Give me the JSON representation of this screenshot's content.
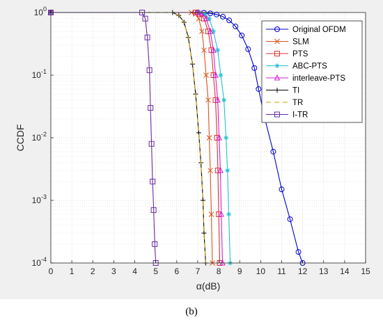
{
  "caption": "(b)",
  "chart_data": {
    "type": "line",
    "title": "",
    "xlabel": "α(dB)",
    "ylabel": "CCDF",
    "xlim": [
      0,
      15
    ],
    "ylim": [
      0.0001,
      1
    ],
    "yscale": "log",
    "grid": true,
    "minor_grid": true,
    "legend_position": "top-right",
    "x_ticks": [
      "0",
      "1",
      "2",
      "3",
      "4",
      "5",
      "6",
      "7",
      "8",
      "9",
      "10",
      "11",
      "12",
      "13",
      "14",
      "15"
    ],
    "y_ticks": [
      {
        "base": "10",
        "exp": "0",
        "value": 1
      },
      {
        "base": "10",
        "exp": "-1",
        "value": 0.1
      },
      {
        "base": "10",
        "exp": "-2",
        "value": 0.01
      },
      {
        "base": "10",
        "exp": "-3",
        "value": 0.001
      },
      {
        "base": "10",
        "exp": "-4",
        "value": 0.0001
      }
    ],
    "series": [
      {
        "name": "Original OFDM",
        "color": "#0000cc",
        "marker": "circle",
        "dash": "",
        "x": [
          0,
          7.0,
          7.3,
          7.6,
          7.9,
          8.2,
          8.5,
          8.8,
          9.1,
          9.4,
          9.7,
          9.9,
          10.2,
          10.6,
          11.0,
          11.4,
          11.8,
          12.0
        ],
        "y": [
          1,
          1,
          0.99,
          0.97,
          0.93,
          0.86,
          0.75,
          0.6,
          0.43,
          0.26,
          0.13,
          0.06,
          0.02,
          0.006,
          0.0015,
          0.0005,
          0.00015,
          0.0001
        ]
      },
      {
        "name": "SLM",
        "color": "#d95319",
        "marker": "x",
        "dash": "",
        "x": [
          0,
          6.7,
          6.9,
          7.05,
          7.2,
          7.3,
          7.4,
          7.5,
          7.55,
          7.6,
          7.65,
          7.7
        ],
        "y": [
          1,
          1,
          0.95,
          0.8,
          0.5,
          0.25,
          0.1,
          0.04,
          0.01,
          0.003,
          0.0006,
          0.0001
        ]
      },
      {
        "name": "PTS",
        "color": "#e03030",
        "marker": "square",
        "dash": "",
        "x": [
          0,
          6.9,
          7.1,
          7.3,
          7.5,
          7.65,
          7.75,
          7.85,
          7.92,
          7.96,
          8.0,
          8.05
        ],
        "y": [
          1,
          1,
          0.95,
          0.8,
          0.5,
          0.25,
          0.1,
          0.04,
          0.01,
          0.003,
          0.0006,
          0.0001
        ]
      },
      {
        "name": "ABC-PTS",
        "color": "#20c0d0",
        "marker": "asterisk",
        "dash": "",
        "x": [
          0,
          7.1,
          7.35,
          7.55,
          7.75,
          7.95,
          8.1,
          8.25,
          8.35,
          8.42,
          8.48,
          8.55
        ],
        "y": [
          1,
          1,
          0.95,
          0.8,
          0.5,
          0.25,
          0.1,
          0.04,
          0.01,
          0.003,
          0.0006,
          0.0001
        ]
      },
      {
        "name": "interleave-PTS",
        "color": "#d020d0",
        "marker": "triangle",
        "dash": "",
        "x": [
          0,
          7.0,
          7.2,
          7.4,
          7.6,
          7.75,
          7.85,
          7.95,
          8.02,
          8.08,
          8.12,
          8.18
        ],
        "y": [
          1,
          1,
          0.95,
          0.8,
          0.5,
          0.25,
          0.1,
          0.04,
          0.01,
          0.003,
          0.0006,
          0.0001
        ]
      },
      {
        "name": "TI",
        "color": "#000000",
        "marker": "plus",
        "dash": "",
        "x": [
          0,
          5.8,
          6.1,
          6.35,
          6.55,
          6.75,
          6.9,
          7.05,
          7.15,
          7.25,
          7.3,
          7.38
        ],
        "y": [
          1,
          1,
          0.9,
          0.7,
          0.4,
          0.15,
          0.05,
          0.012,
          0.004,
          0.001,
          0.0003,
          0.0001
        ]
      },
      {
        "name": "TR",
        "color": "#c8a000",
        "marker": "",
        "dash": "7,5",
        "x": [
          0,
          5.8,
          6.1,
          6.35,
          6.55,
          6.75,
          6.9,
          7.05,
          7.15,
          7.25,
          7.3,
          7.38
        ],
        "y": [
          1,
          1,
          0.9,
          0.7,
          0.4,
          0.15,
          0.05,
          0.012,
          0.004,
          0.001,
          0.0003,
          0.0001
        ]
      },
      {
        "name": "I-TR",
        "color": "#6a2aa0",
        "marker": "square",
        "dash": "",
        "x": [
          0,
          4.35,
          4.5,
          4.6,
          4.7,
          4.75,
          4.8,
          4.85,
          4.9,
          4.95,
          5.0
        ],
        "y": [
          1,
          1,
          0.8,
          0.4,
          0.12,
          0.03,
          0.008,
          0.002,
          0.0007,
          0.0002,
          0.0001
        ]
      }
    ]
  }
}
